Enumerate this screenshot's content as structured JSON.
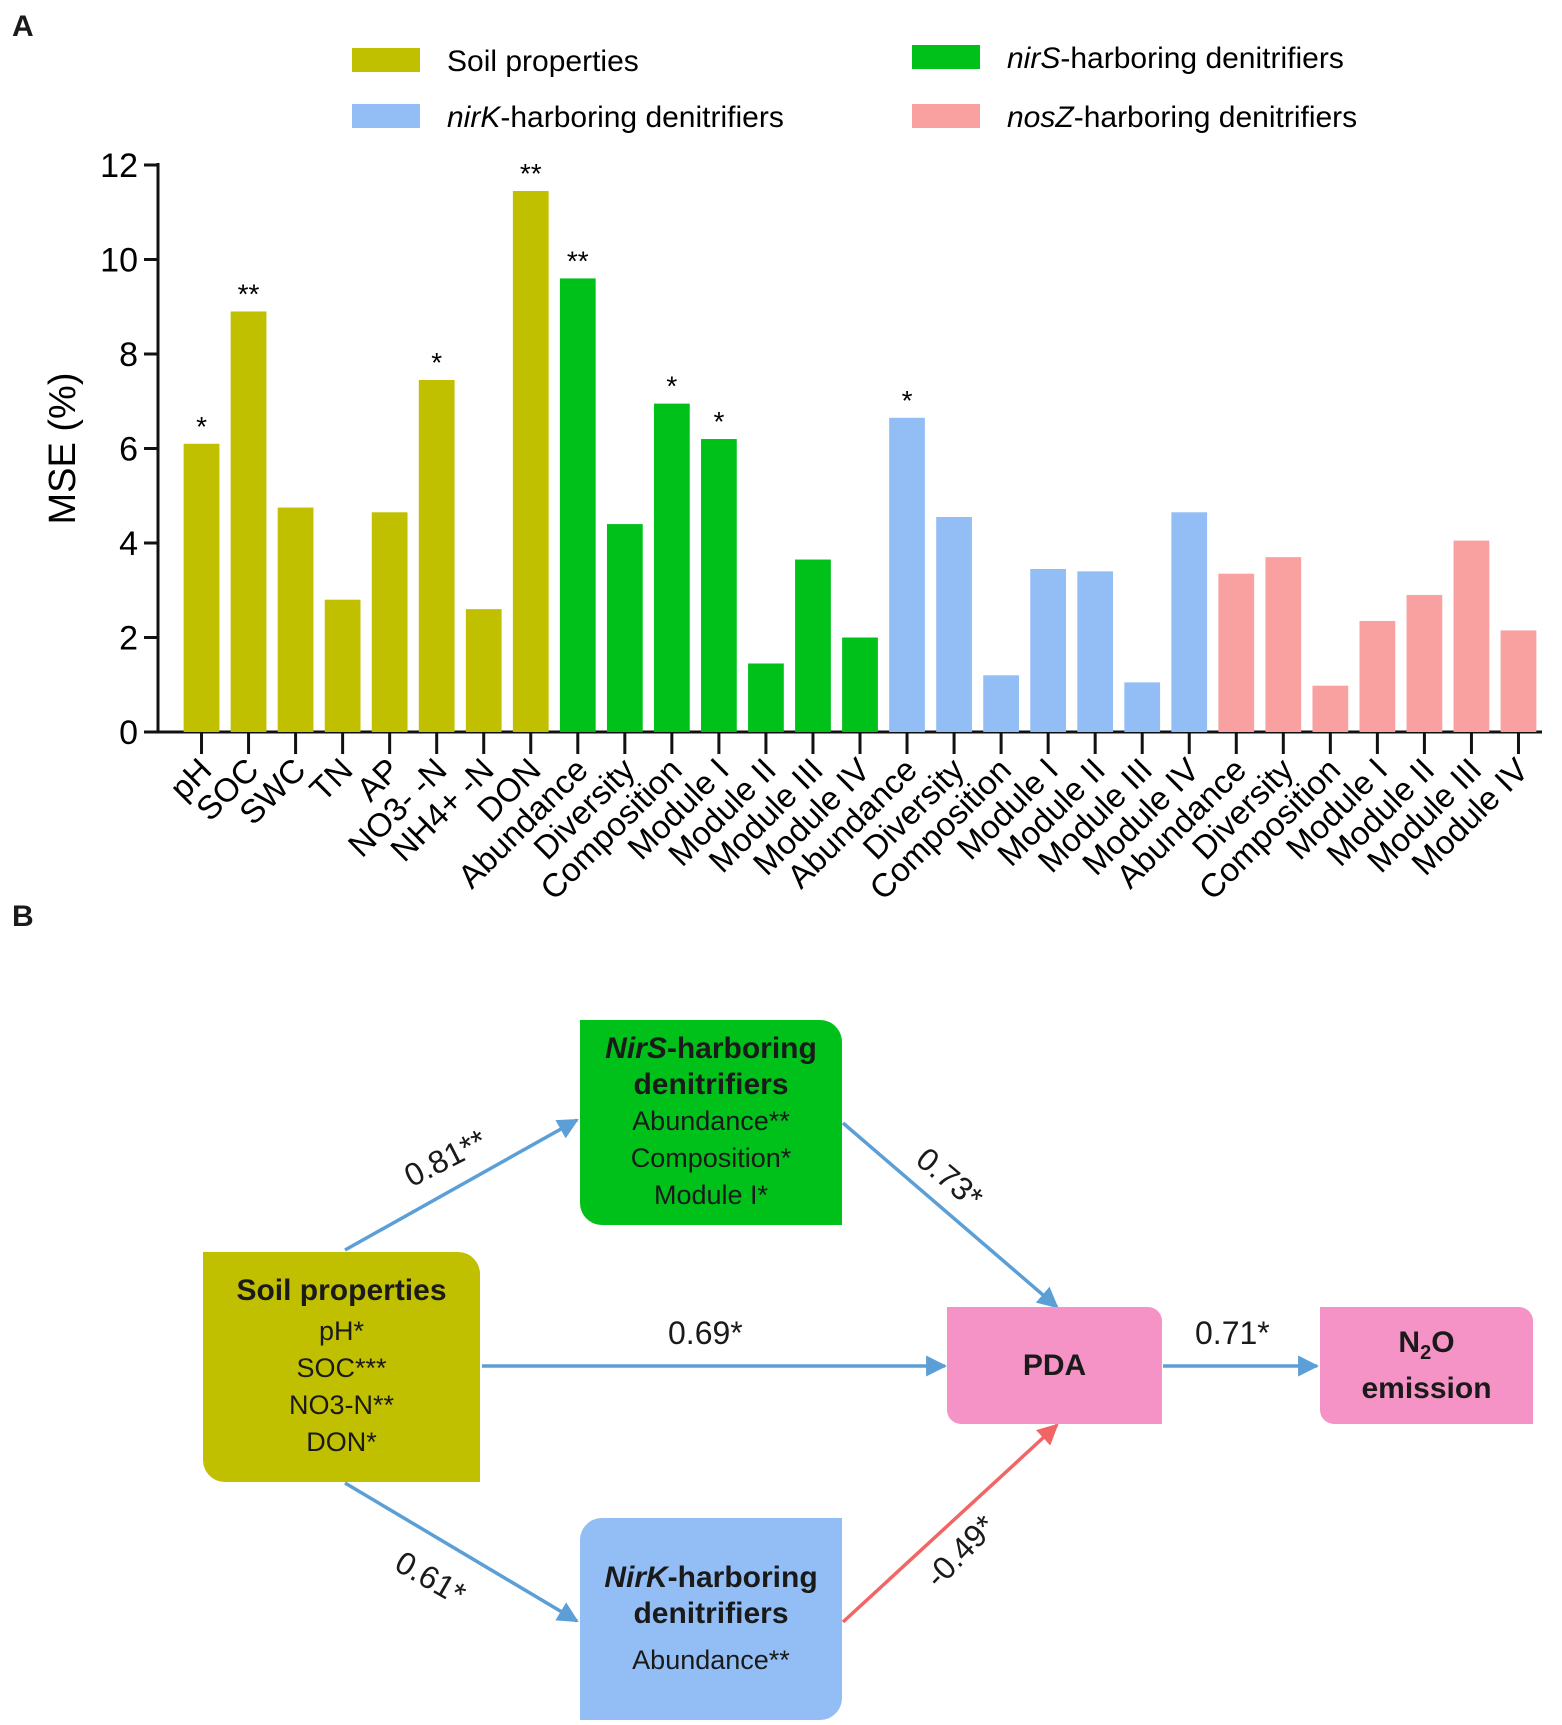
{
  "panel_a_label": "A",
  "panel_b_label": "B",
  "chart_data": {
    "type": "bar",
    "title": "",
    "xlabel": "",
    "ylabel": "MSE (%)",
    "ylim": [
      0,
      12
    ],
    "yticks": [
      0,
      2,
      4,
      6,
      8,
      10,
      12
    ],
    "legend": [
      {
        "key": "soil",
        "prefix": "",
        "italic": "",
        "text": "Soil properties",
        "color": "#c0bf00"
      },
      {
        "key": "nirS",
        "prefix": "",
        "italic": "nirS",
        "text": "-harboring denitrifiers",
        "color": "#00c01a"
      },
      {
        "key": "nirK",
        "prefix": "",
        "italic": "nirK",
        "text": "-harboring denitrifiers",
        "color": "#92bef5"
      },
      {
        "key": "nosZ",
        "prefix": "",
        "italic": "nosZ",
        "text": "-harboring denitrifiers",
        "color": "#f9a0a0"
      }
    ],
    "bars": [
      {
        "label": "pH",
        "value": 6.1,
        "group": "soil",
        "sig": "*"
      },
      {
        "label": "SOC",
        "value": 8.9,
        "group": "soil",
        "sig": "**"
      },
      {
        "label": "SWC",
        "value": 4.75,
        "group": "soil",
        "sig": ""
      },
      {
        "label": "TN",
        "value": 2.8,
        "group": "soil",
        "sig": ""
      },
      {
        "label": "AP",
        "value": 4.65,
        "group": "soil",
        "sig": ""
      },
      {
        "label": "NO3- -N",
        "value": 7.45,
        "group": "soil",
        "sig": "*"
      },
      {
        "label": "NH4+ -N",
        "value": 2.6,
        "group": "soil",
        "sig": ""
      },
      {
        "label": "DON",
        "value": 11.45,
        "group": "soil",
        "sig": "**"
      },
      {
        "label": "Abundance",
        "value": 9.6,
        "group": "nirS",
        "sig": "**"
      },
      {
        "label": "Diversity",
        "value": 4.4,
        "group": "nirS",
        "sig": ""
      },
      {
        "label": "Composition",
        "value": 6.95,
        "group": "nirS",
        "sig": "*"
      },
      {
        "label": "Module I",
        "value": 6.2,
        "group": "nirS",
        "sig": "*"
      },
      {
        "label": "Module II",
        "value": 1.45,
        "group": "nirS",
        "sig": ""
      },
      {
        "label": "Module III",
        "value": 3.65,
        "group": "nirS",
        "sig": ""
      },
      {
        "label": "Module IV",
        "value": 2.0,
        "group": "nirS",
        "sig": ""
      },
      {
        "label": "Abundance",
        "value": 6.65,
        "group": "nirK",
        "sig": "*"
      },
      {
        "label": "Diversity",
        "value": 4.55,
        "group": "nirK",
        "sig": ""
      },
      {
        "label": "Composition",
        "value": 1.2,
        "group": "nirK",
        "sig": ""
      },
      {
        "label": "Module I",
        "value": 3.45,
        "group": "nirK",
        "sig": ""
      },
      {
        "label": "Module II",
        "value": 3.4,
        "group": "nirK",
        "sig": ""
      },
      {
        "label": "Module III",
        "value": 1.05,
        "group": "nirK",
        "sig": ""
      },
      {
        "label": "Module IV",
        "value": 4.65,
        "group": "nirK",
        "sig": ""
      },
      {
        "label": "Abundance",
        "value": 3.35,
        "group": "nosZ",
        "sig": ""
      },
      {
        "label": "Diversity",
        "value": 3.7,
        "group": "nosZ",
        "sig": ""
      },
      {
        "label": "Composition",
        "value": 0.98,
        "group": "nosZ",
        "sig": ""
      },
      {
        "label": "Module I",
        "value": 2.35,
        "group": "nosZ",
        "sig": ""
      },
      {
        "label": "Module II",
        "value": 2.9,
        "group": "nosZ",
        "sig": ""
      },
      {
        "label": "Module III",
        "value": 4.05,
        "group": "nosZ",
        "sig": ""
      },
      {
        "label": "Module IV",
        "value": 2.15,
        "group": "nosZ",
        "sig": ""
      }
    ]
  },
  "diagram": {
    "colors": {
      "soil": "#c0bf00",
      "nirS": "#00c01a",
      "nirK": "#92bef5",
      "pda": "#f593c6",
      "n2o": "#f593c6",
      "positive_arrow": "#5b9fd6",
      "negative_arrow": "#f26565"
    },
    "nodes": {
      "soil": {
        "title": "Soil properties",
        "items": [
          "pH*",
          "SOC***",
          "NO3-N**",
          "DON*"
        ]
      },
      "nirS": {
        "title_italic": "NirS",
        "title_rest": "-harboring",
        "title_line2": "denitrifiers",
        "items": [
          "Abundance**",
          "Composition*",
          "Module I*"
        ]
      },
      "nirK": {
        "title_italic": "NirK",
        "title_rest": "-harboring",
        "title_line2": "denitrifiers",
        "items": [
          "Abundance**"
        ]
      },
      "pda": {
        "title": "PDA"
      },
      "n2o": {
        "title_pre": "N",
        "title_sub": "2",
        "title_post": "O",
        "title_line2": "emission"
      }
    },
    "edges": {
      "soil_nirS": "0.81**",
      "nirS_pda": "0.73*",
      "soil_pda": "0.69*",
      "pda_n2o": "0.71*",
      "soil_nirK": "0.61*",
      "nirK_pda": "-0.49*"
    }
  }
}
